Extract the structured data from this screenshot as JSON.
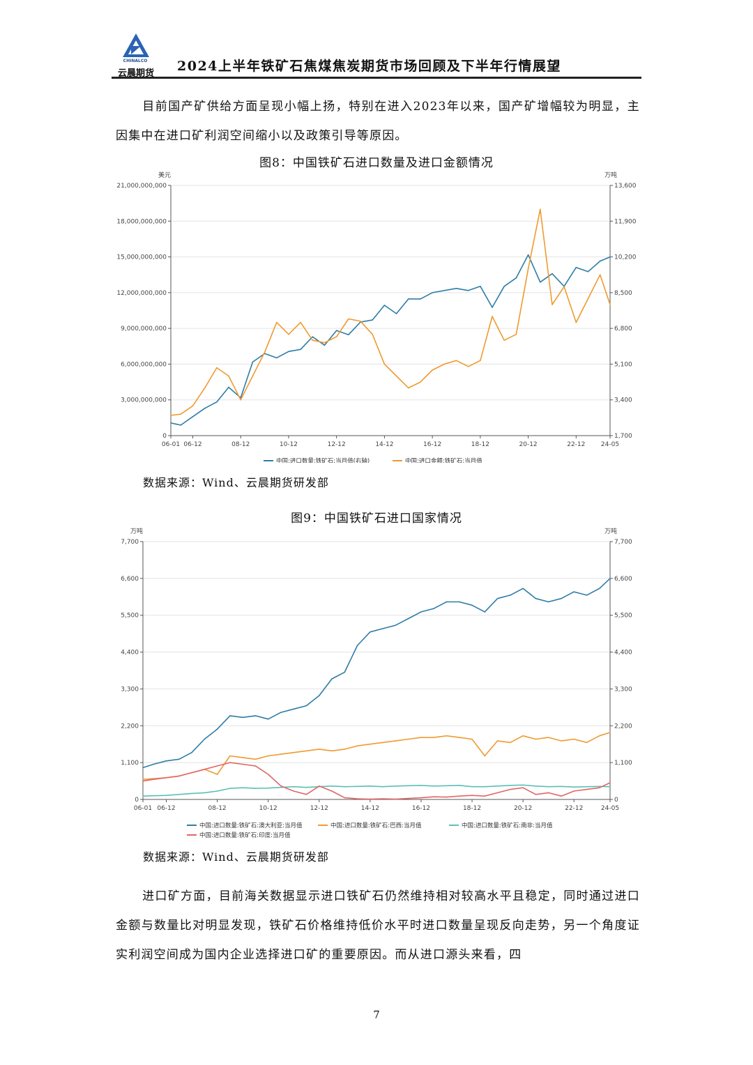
{
  "header": {
    "logo_text_en": "CHINALCO",
    "logo_text_cn": "云晨期货",
    "title": "2024上半年铁矿石焦煤焦炭期货市场回顾及下半年行情展望"
  },
  "paragraph_1": "目前国产矿供给方面呈现小幅上扬，特别在进入2023年以来，国产矿增幅较为明显，主因集中在进口矿利润空间缩小以及政策引导等原因。",
  "figure_8": {
    "caption": "图8：中国铁矿石进口数量及进口金额情况",
    "source": "数据来源：Wind、云晨期货研发部"
  },
  "figure_9": {
    "caption": "图9：中国铁矿石进口国家情况",
    "source": "数据来源：Wind、云晨期货研发部"
  },
  "paragraph_2": "进口矿方面，目前海关数据显示进口铁矿石仍然维持相对较高水平且稳定，同时通过进口金额与数量比对明显发现，铁矿石价格维持低价水平时进口数量呈现反向走势，另一个角度证实利润空间成为国内企业选择进口矿的重要原因。而从进口源头来看，四",
  "page_number": "7",
  "chart_data": [
    {
      "type": "line",
      "y_left_unit": "美元",
      "y_right_unit": "万吨",
      "y_left_ticks": [
        "0",
        "3,000,000,000",
        "6,000,000,000",
        "9,000,000,000",
        "12,000,000,000",
        "15,000,000,000",
        "18,000,000,000",
        "21,000,000,000"
      ],
      "y_right_ticks": [
        "1,700",
        "3,400",
        "5,100",
        "6,800",
        "8,500",
        "10,200",
        "11,900",
        "13,600"
      ],
      "x_ticks": [
        "06-01",
        "06-12",
        "08-12",
        "10-12",
        "12-12",
        "14-12",
        "16-12",
        "18-12",
        "20-12",
        "22-12",
        "24-05"
      ],
      "ylim_left": [
        0,
        21000000000
      ],
      "ylim_right": [
        1700,
        13600
      ],
      "grid": true,
      "legend_position": "bottom",
      "series": [
        {
          "name": "中国:进口数量:铁矿石:当月值(右轴)",
          "axis": "right",
          "color": "#2e7ca6",
          "x": [
            "2006-01",
            "2006-06",
            "2006-12",
            "2007-06",
            "2007-12",
            "2008-06",
            "2008-12",
            "2009-06",
            "2009-12",
            "2010-06",
            "2010-12",
            "2011-06",
            "2011-12",
            "2012-06",
            "2012-12",
            "2013-06",
            "2013-12",
            "2014-06",
            "2014-12",
            "2015-06",
            "2015-12",
            "2016-06",
            "2016-12",
            "2017-06",
            "2017-12",
            "2018-06",
            "2018-12",
            "2019-06",
            "2019-12",
            "2020-06",
            "2020-12",
            "2021-06",
            "2021-12",
            "2022-06",
            "2022-12",
            "2023-06",
            "2023-12",
            "2024-05"
          ],
          "values": [
            2300,
            2200,
            2600,
            3000,
            3300,
            4000,
            3500,
            5200,
            5600,
            5400,
            5700,
            5800,
            6400,
            6000,
            6700,
            6500,
            7100,
            7200,
            7900,
            7500,
            8200,
            8200,
            8500,
            8600,
            8700,
            8600,
            8800,
            7800,
            8800,
            9200,
            10300,
            9000,
            9400,
            8800,
            9700,
            9500,
            10000,
            10200
          ]
        },
        {
          "name": "中国:进口金额:铁矿石:当月值",
          "axis": "left",
          "color": "#ef9a2f",
          "x": [
            "2006-01",
            "2006-06",
            "2006-12",
            "2007-06",
            "2007-12",
            "2008-06",
            "2008-12",
            "2009-06",
            "2009-12",
            "2010-06",
            "2010-12",
            "2011-06",
            "2011-12",
            "2012-06",
            "2012-12",
            "2013-06",
            "2013-12",
            "2014-06",
            "2014-12",
            "2015-06",
            "2015-12",
            "2016-06",
            "2016-12",
            "2017-06",
            "2017-12",
            "2018-06",
            "2018-12",
            "2019-06",
            "2019-12",
            "2020-06",
            "2020-12",
            "2021-06",
            "2021-12",
            "2022-06",
            "2022-12",
            "2023-06",
            "2023-12",
            "2024-05"
          ],
          "values": [
            1700000000,
            1800000000,
            2500000000,
            4000000000,
            5700000000,
            5000000000,
            3000000000,
            5000000000,
            7000000000,
            9500000000,
            8500000000,
            9500000000,
            8000000000,
            7800000000,
            8300000000,
            9800000000,
            9600000000,
            8500000000,
            6000000000,
            5000000000,
            4000000000,
            4500000000,
            5500000000,
            6000000000,
            6300000000,
            5800000000,
            6300000000,
            10000000000,
            8000000000,
            8500000000,
            14000000000,
            19000000000,
            11000000000,
            12500000000,
            9500000000,
            11500000000,
            13500000000,
            11000000000
          ]
        }
      ]
    },
    {
      "type": "line",
      "y_left_unit": "万吨",
      "y_right_unit": "万吨",
      "y_ticks": [
        "0",
        "1,100",
        "2,200",
        "3,300",
        "4,400",
        "5,500",
        "6,600",
        "7,700"
      ],
      "x_ticks": [
        "06-01",
        "06-12",
        "08-12",
        "10-12",
        "12-12",
        "14-12",
        "16-12",
        "18-12",
        "20-12",
        "22-12",
        "24-05"
      ],
      "ylim": [
        0,
        7700
      ],
      "grid": true,
      "legend_position": "bottom",
      "series": [
        {
          "name": "中国:进口数量:铁矿石:澳大利亚:当月值",
          "color": "#2e7ca6",
          "x": [
            "2006-01",
            "2006-06",
            "2006-12",
            "2007-06",
            "2007-12",
            "2008-06",
            "2008-12",
            "2009-06",
            "2009-12",
            "2010-06",
            "2010-12",
            "2011-06",
            "2011-12",
            "2012-06",
            "2012-12",
            "2013-06",
            "2013-12",
            "2014-06",
            "2014-12",
            "2015-06",
            "2015-12",
            "2016-06",
            "2016-12",
            "2017-06",
            "2017-12",
            "2018-06",
            "2018-12",
            "2019-06",
            "2019-12",
            "2020-06",
            "2020-12",
            "2021-06",
            "2021-12",
            "2022-06",
            "2022-12",
            "2023-06",
            "2023-12",
            "2024-05"
          ],
          "values": [
            950,
            1050,
            1150,
            1200,
            1400,
            1800,
            2100,
            2500,
            2450,
            2500,
            2400,
            2600,
            2700,
            2800,
            3100,
            3600,
            3800,
            4600,
            5000,
            5100,
            5200,
            5400,
            5600,
            5700,
            5900,
            5900,
            5800,
            5600,
            6000,
            6100,
            6300,
            6000,
            5900,
            6000,
            6200,
            6100,
            6300,
            6600
          ]
        },
        {
          "name": "中国:进口数量:铁矿石:巴西:当月值",
          "color": "#ef9a2f",
          "x": [
            "2006-01",
            "2006-06",
            "2006-12",
            "2007-06",
            "2007-12",
            "2008-06",
            "2008-12",
            "2009-06",
            "2009-12",
            "2010-06",
            "2010-12",
            "2011-06",
            "2011-12",
            "2012-06",
            "2012-12",
            "2013-06",
            "2013-12",
            "2014-06",
            "2014-12",
            "2015-06",
            "2015-12",
            "2016-06",
            "2016-12",
            "2017-06",
            "2017-12",
            "2018-06",
            "2018-12",
            "2019-06",
            "2019-12",
            "2020-06",
            "2020-12",
            "2021-06",
            "2021-12",
            "2022-06",
            "2022-12",
            "2023-06",
            "2023-12",
            "2024-05"
          ],
          "values": [
            600,
            620,
            650,
            700,
            800,
            900,
            750,
            1300,
            1250,
            1200,
            1300,
            1350,
            1400,
            1450,
            1500,
            1450,
            1500,
            1600,
            1650,
            1700,
            1750,
            1800,
            1850,
            1850,
            1900,
            1850,
            1800,
            1300,
            1750,
            1700,
            1900,
            1800,
            1850,
            1750,
            1800,
            1700,
            1900,
            2000
          ]
        },
        {
          "name": "中国:进口数量:铁矿石:南非:当月值",
          "color": "#5cbfb5",
          "x": [
            "2006-01",
            "2006-06",
            "2006-12",
            "2007-06",
            "2007-12",
            "2008-06",
            "2008-12",
            "2009-06",
            "2009-12",
            "2010-06",
            "2010-12",
            "2011-06",
            "2011-12",
            "2012-06",
            "2012-12",
            "2013-06",
            "2013-12",
            "2014-06",
            "2014-12",
            "2015-06",
            "2015-12",
            "2016-06",
            "2016-12",
            "2017-06",
            "2017-12",
            "2018-06",
            "2018-12",
            "2019-06",
            "2019-12",
            "2020-06",
            "2020-12",
            "2021-06",
            "2021-12",
            "2022-06",
            "2022-12",
            "2023-06",
            "2023-12",
            "2024-05"
          ],
          "values": [
            100,
            110,
            120,
            150,
            180,
            200,
            250,
            330,
            350,
            330,
            340,
            360,
            380,
            360,
            380,
            400,
            380,
            390,
            400,
            380,
            400,
            410,
            420,
            400,
            410,
            420,
            380,
            380,
            400,
            420,
            430,
            400,
            380,
            390,
            370,
            380,
            390,
            380
          ]
        },
        {
          "name": "中国:进口数量:铁矿石:印度:当月值",
          "color": "#e06666",
          "x": [
            "2006-01",
            "2006-06",
            "2006-12",
            "2007-06",
            "2007-12",
            "2008-06",
            "2008-12",
            "2009-06",
            "2009-12",
            "2010-06",
            "2010-12",
            "2011-06",
            "2011-12",
            "2012-06",
            "2012-12",
            "2013-06",
            "2013-12",
            "2014-06",
            "2014-12",
            "2015-06",
            "2015-12",
            "2016-06",
            "2016-12",
            "2017-06",
            "2017-12",
            "2018-06",
            "2018-12",
            "2019-06",
            "2019-12",
            "2020-06",
            "2020-12",
            "2021-06",
            "2021-12",
            "2022-06",
            "2022-12",
            "2023-06",
            "2023-12",
            "2024-05"
          ],
          "values": [
            550,
            600,
            650,
            700,
            800,
            900,
            1000,
            1100,
            1050,
            1000,
            750,
            400,
            250,
            150,
            400,
            250,
            50,
            20,
            10,
            20,
            10,
            30,
            50,
            80,
            70,
            100,
            120,
            100,
            200,
            300,
            350,
            150,
            200,
            100,
            250,
            300,
            350,
            500
          ]
        }
      ]
    }
  ]
}
